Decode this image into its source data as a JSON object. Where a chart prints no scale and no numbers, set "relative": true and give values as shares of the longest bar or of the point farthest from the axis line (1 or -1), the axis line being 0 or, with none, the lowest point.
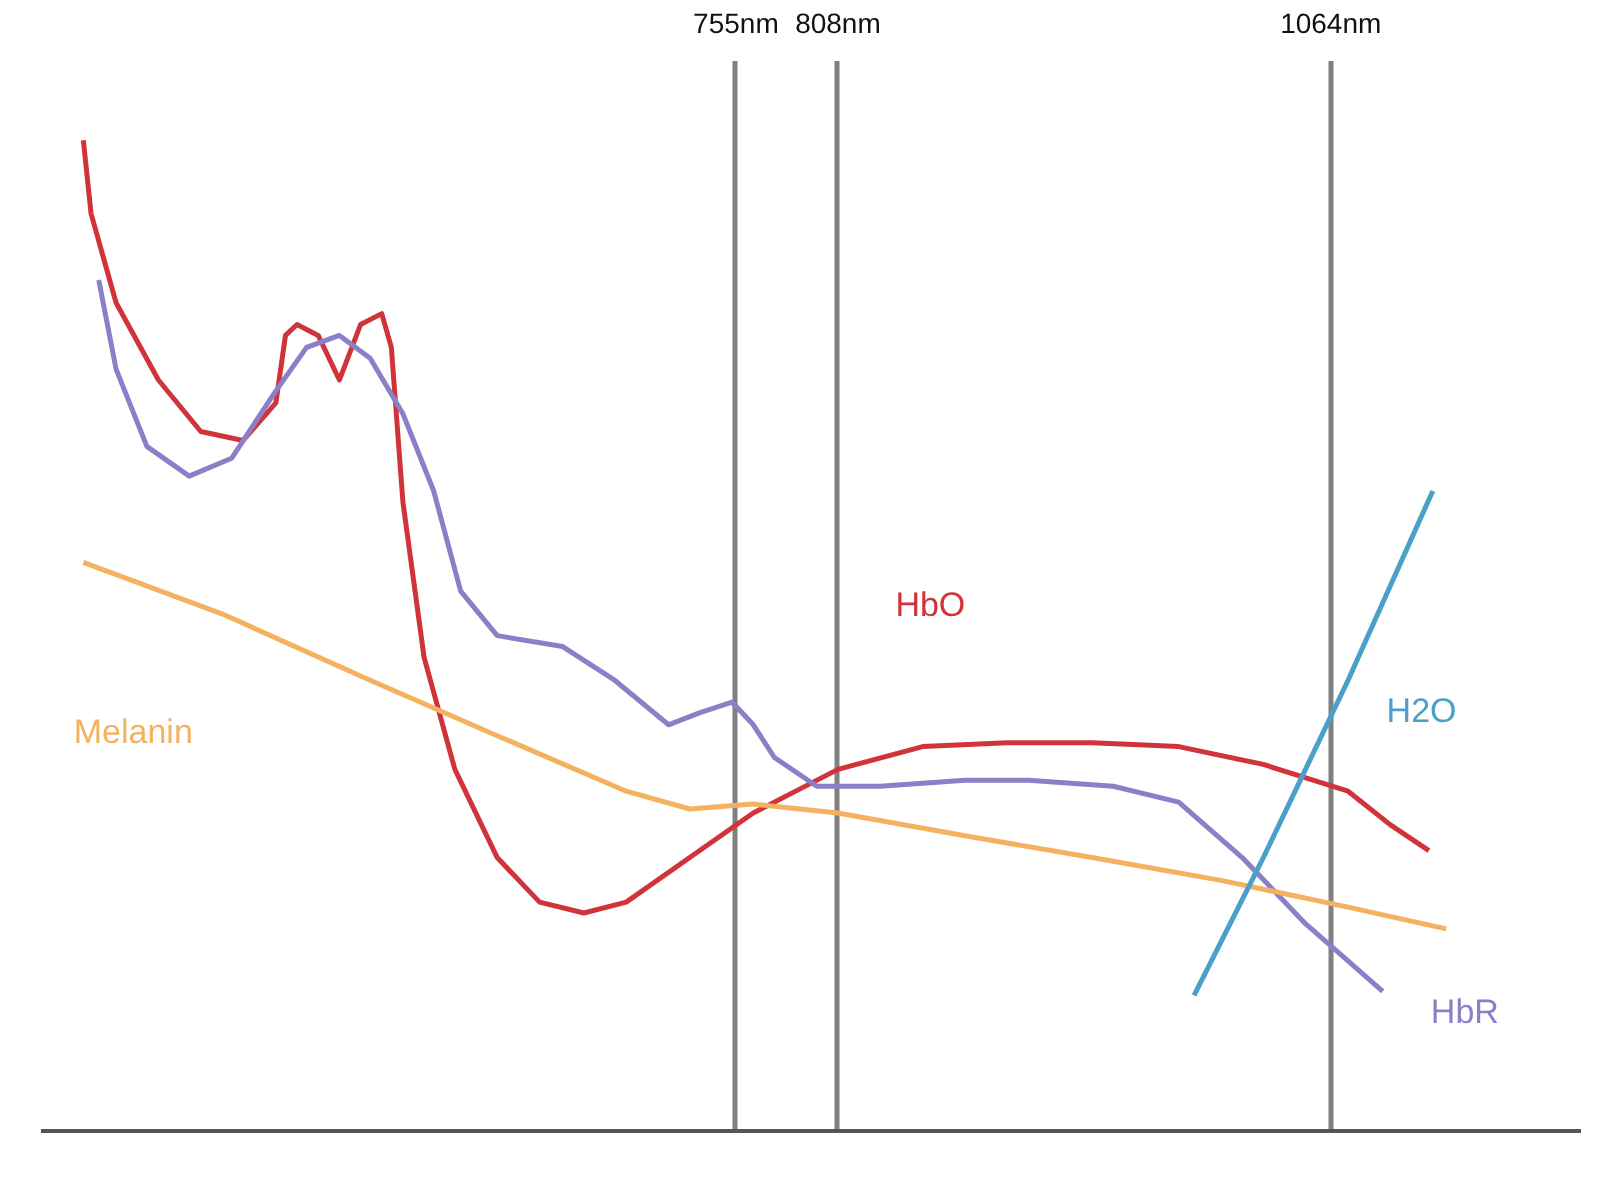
{
  "chart_data": {
    "type": "line",
    "relative": true,
    "grid": "x",
    "marker": "none",
    "line_style": "solid",
    "xlim": [
      394,
      1194
    ],
    "xticks": [
      {
        "value": 755,
        "label": "755nm"
      },
      {
        "value": 808,
        "label": "808nm"
      },
      {
        "value": 1064,
        "label": "1064nm"
      }
    ],
    "series": [
      {
        "name": "HbO",
        "color": "#d0343a",
        "x": [
          416,
          420,
          433,
          455,
          477,
          499,
          516,
          521,
          527,
          538,
          549,
          560,
          571,
          576,
          582,
          593,
          609,
          631,
          653,
          676,
          698,
          731,
          764,
          808,
          852,
          896,
          940,
          985,
          1029,
          1073,
          1095,
          1115
        ],
        "values": [
          1.0,
          0.926,
          0.836,
          0.758,
          0.706,
          0.697,
          0.735,
          0.803,
          0.814,
          0.803,
          0.758,
          0.814,
          0.825,
          0.791,
          0.635,
          0.478,
          0.365,
          0.276,
          0.231,
          0.22,
          0.231,
          0.276,
          0.321,
          0.365,
          0.388,
          0.392,
          0.392,
          0.388,
          0.37,
          0.343,
          0.309,
          0.283
        ]
      },
      {
        "name": "HbR",
        "color": "#8b7fc7",
        "x": [
          424,
          433,
          449,
          471,
          493,
          516,
          532,
          549,
          565,
          582,
          598,
          612,
          631,
          665,
          692,
          720,
          736,
          753,
          764,
          775,
          797,
          830,
          874,
          907,
          951,
          985,
          1018,
          1051,
          1091
        ],
        "values": [
          0.859,
          0.769,
          0.691,
          0.661,
          0.679,
          0.747,
          0.791,
          0.803,
          0.78,
          0.724,
          0.646,
          0.545,
          0.5,
          0.489,
          0.455,
          0.41,
          0.422,
          0.433,
          0.41,
          0.377,
          0.348,
          0.348,
          0.354,
          0.354,
          0.348,
          0.332,
          0.276,
          0.209,
          0.141
        ]
      },
      {
        "name": "Melanin",
        "color": "#f4b261",
        "x": [
          416,
          488,
          565,
          631,
          698,
          731,
          764,
          808,
          874,
          940,
          1007,
          1073,
          1124
        ],
        "values": [
          0.574,
          0.522,
          0.455,
          0.399,
          0.343,
          0.325,
          0.33,
          0.321,
          0.298,
          0.276,
          0.253,
          0.226,
          0.204
        ]
      },
      {
        "name": "H2O",
        "color": "#4aa0c8",
        "x": [
          993,
          1029,
          1073,
          1117
        ],
        "values": [
          0.137,
          0.276,
          0.455,
          0.646
        ]
      }
    ]
  }
}
